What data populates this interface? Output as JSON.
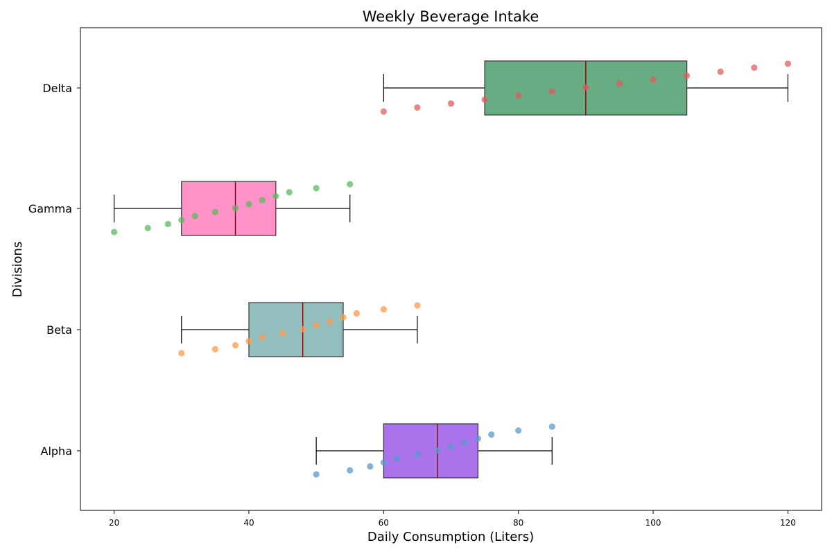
{
  "chart_data": {
    "type": "box",
    "title": "Weekly Beverage Intake",
    "xlabel": "Daily Consumption (Liters)",
    "ylabel": "Divisions",
    "xlim": [
      15,
      125
    ],
    "xticks": [
      "20",
      "40",
      "60",
      "80",
      "100",
      "120"
    ],
    "grid": false,
    "orientation": "horizontal",
    "categories": [
      "Alpha",
      "Beta",
      "Gamma",
      "Delta"
    ],
    "series": [
      {
        "category": "Alpha",
        "box_color": "#9b59e8",
        "point_color": "#5b9ac9",
        "whisker_low": 50,
        "q1": 60,
        "median": 68,
        "q3": 74,
        "whisker_high": 85,
        "points": [
          50,
          55,
          58,
          60,
          62,
          65,
          68,
          70,
          72,
          74,
          76,
          80,
          85
        ]
      },
      {
        "category": "Beta",
        "box_color": "#7fb3b3",
        "point_color": "#ff9a4a",
        "whisker_low": 30,
        "q1": 40,
        "median": 48,
        "q3": 54,
        "whisker_high": 65,
        "points": [
          30,
          35,
          38,
          40,
          42,
          45,
          48,
          50,
          52,
          54,
          56,
          60,
          65
        ]
      },
      {
        "category": "Gamma",
        "box_color": "#ff80c0",
        "point_color": "#5cb85c",
        "whisker_low": 20,
        "q1": 30,
        "median": 38,
        "q3": 44,
        "whisker_high": 55,
        "points": [
          20,
          25,
          28,
          30,
          32,
          35,
          38,
          40,
          42,
          44,
          46,
          50,
          55
        ]
      },
      {
        "category": "Delta",
        "box_color": "#4e9e6e",
        "point_color": "#e05c5c",
        "whisker_low": 60,
        "q1": 75,
        "median": 90,
        "q3": 105,
        "whisker_high": 120,
        "points": [
          60,
          65,
          70,
          75,
          80,
          85,
          90,
          95,
          100,
          105,
          110,
          115,
          120
        ]
      }
    ],
    "median_color": "#8b0000"
  }
}
